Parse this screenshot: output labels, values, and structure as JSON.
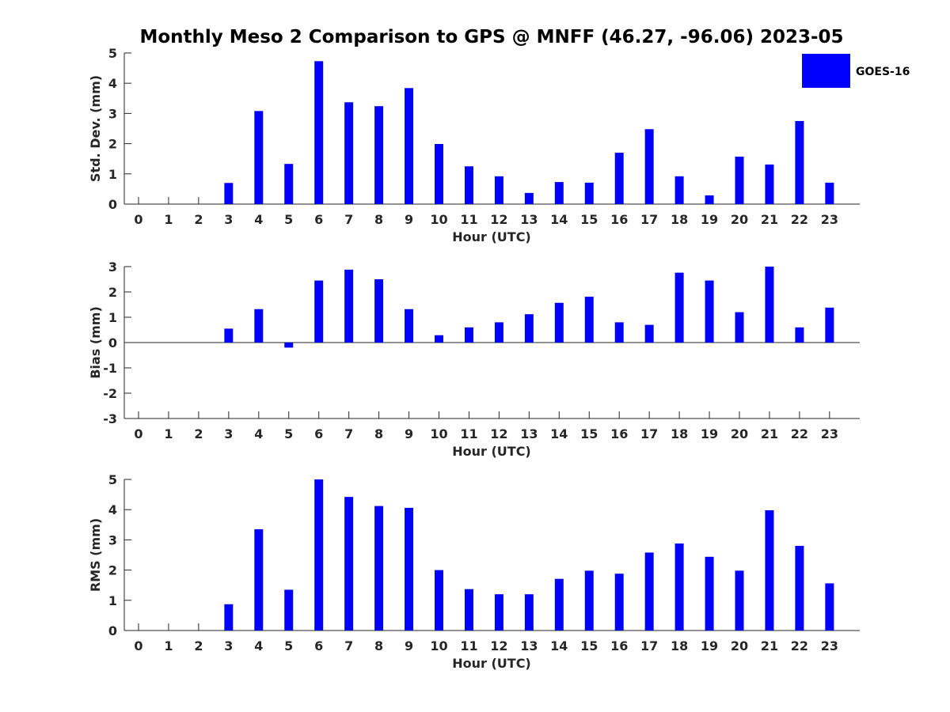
{
  "chart_data": {
    "title": "Monthly Meso 2 Comparison to GPS @ MNFF (46.27, -96.06) 2023-05",
    "legend": {
      "label": "GOES-16",
      "placement": "top-right"
    },
    "series_color": "#0000ff",
    "panels": [
      {
        "type": "bar",
        "ylabel": "Std. Dev. (mm)",
        "xlabel": "Hour (UTC)",
        "ylim": [
          0,
          5
        ],
        "yticks": [
          0,
          1,
          2,
          3,
          4,
          5
        ],
        "categories": [
          0,
          1,
          2,
          3,
          4,
          5,
          6,
          7,
          8,
          9,
          10,
          11,
          12,
          13,
          14,
          15,
          16,
          17,
          18,
          19,
          20,
          21,
          22,
          23
        ],
        "values": [
          null,
          null,
          null,
          0.7,
          3.08,
          1.33,
          4.73,
          3.37,
          3.24,
          3.84,
          1.99,
          1.25,
          0.92,
          0.37,
          0.73,
          0.71,
          1.7,
          2.48,
          0.92,
          0.29,
          1.57,
          1.31,
          2.75,
          0.71
        ]
      },
      {
        "type": "bar",
        "ylabel": "Bias (mm)",
        "xlabel": "Hour (UTC)",
        "ylim": [
          -3,
          3
        ],
        "yticks": [
          -3,
          -2,
          -1,
          0,
          1,
          2,
          3
        ],
        "categories": [
          0,
          1,
          2,
          3,
          4,
          5,
          6,
          7,
          8,
          9,
          10,
          11,
          12,
          13,
          14,
          15,
          16,
          17,
          18,
          19,
          20,
          21,
          22,
          23
        ],
        "values": [
          null,
          null,
          null,
          0.55,
          1.32,
          -0.2,
          2.45,
          2.88,
          2.5,
          1.32,
          0.29,
          0.6,
          0.8,
          1.12,
          1.57,
          1.81,
          0.8,
          0.7,
          2.76,
          2.45,
          1.2,
          3.0,
          0.6,
          1.38
        ]
      },
      {
        "type": "bar",
        "ylabel": "RMS (mm)",
        "xlabel": "Hour (UTC)",
        "ylim": [
          0,
          5
        ],
        "yticks": [
          0,
          1,
          2,
          3,
          4,
          5
        ],
        "categories": [
          0,
          1,
          2,
          3,
          4,
          5,
          6,
          7,
          8,
          9,
          10,
          11,
          12,
          13,
          14,
          15,
          16,
          17,
          18,
          19,
          20,
          21,
          22,
          23
        ],
        "values": [
          null,
          null,
          null,
          0.87,
          3.35,
          1.35,
          5.0,
          4.42,
          4.12,
          4.06,
          2.0,
          1.37,
          1.2,
          1.2,
          1.71,
          1.98,
          1.88,
          2.58,
          2.88,
          2.44,
          1.98,
          3.98,
          2.8,
          1.56
        ]
      }
    ]
  }
}
